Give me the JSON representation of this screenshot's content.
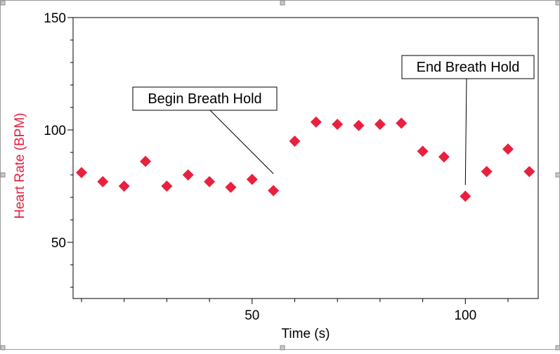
{
  "chart_data": {
    "type": "scatter",
    "xlabel": "Time (s)",
    "ylabel": "Heart Rate (BPM)",
    "xlim": [
      5,
      115
    ],
    "ylim": [
      25,
      150
    ],
    "x_ticks": [
      50,
      100
    ],
    "y_ticks": [
      50,
      100,
      150
    ],
    "grid": false,
    "series": [
      {
        "color": "#e8213f",
        "marker": "diamond",
        "points": [
          {
            "x": 5,
            "y": 81
          },
          {
            "x": 10,
            "y": 77
          },
          {
            "x": 15,
            "y": 75
          },
          {
            "x": 20,
            "y": 86
          },
          {
            "x": 25,
            "y": 75
          },
          {
            "x": 30,
            "y": 80
          },
          {
            "x": 35,
            "y": 77
          },
          {
            "x": 40,
            "y": 74.5
          },
          {
            "x": 45,
            "y": 78
          },
          {
            "x": 50,
            "y": 73
          },
          {
            "x": 55,
            "y": 95
          },
          {
            "x": 60,
            "y": 103.5
          },
          {
            "x": 65,
            "y": 102.5
          },
          {
            "x": 70,
            "y": 102
          },
          {
            "x": 75,
            "y": 102.5
          },
          {
            "x": 80,
            "y": 103
          },
          {
            "x": 85,
            "y": 90.5
          },
          {
            "x": 90,
            "y": 88
          },
          {
            "x": 95,
            "y": 70.5
          },
          {
            "x": 100,
            "y": 81.5
          },
          {
            "x": 105,
            "y": 91.5
          },
          {
            "x": 110,
            "y": 81.5
          }
        ]
      }
    ],
    "annotations": [
      {
        "text": "Begin Breath Hold",
        "x": 50,
        "y": 73
      },
      {
        "text": "End Breath Hold",
        "x": 95,
        "y": 70.5
      }
    ],
    "ylabel_color": "#e8213f"
  }
}
